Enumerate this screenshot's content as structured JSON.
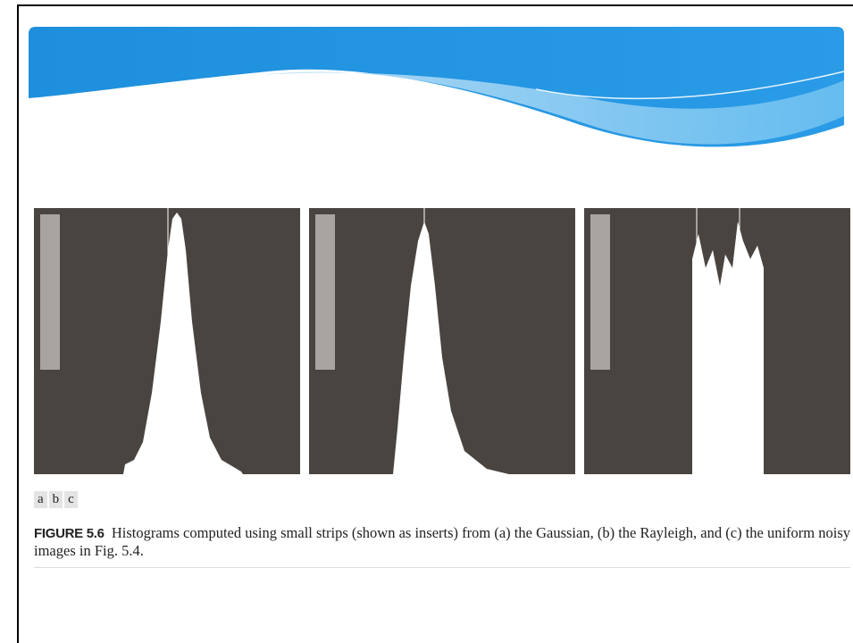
{
  "figure": {
    "panel_labels": [
      "a",
      "b",
      "c"
    ],
    "label": "FIGURE 5.6",
    "caption": "Histograms computed using small strips (shown as inserts) from (a) the Gaussian, (b) the Rayleigh, and (c) the uniform noisy images in Fig. 5.4."
  }
}
